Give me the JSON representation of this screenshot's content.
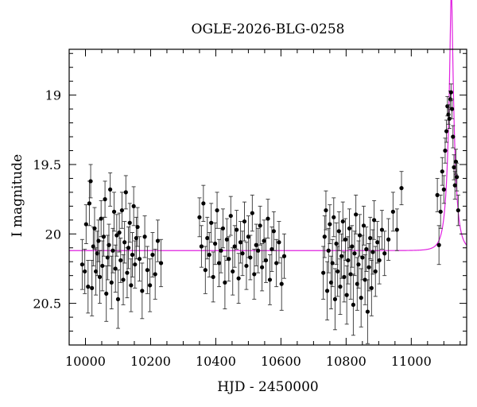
{
  "chart_data": {
    "type": "scatter",
    "title": "OGLE-2026-BLG-0258",
    "xlabel": "HJD - 2450000",
    "ylabel": "I magnitude",
    "xlim": [
      9950,
      11170
    ],
    "ylim": [
      20.8,
      18.67
    ],
    "y_inverted": true,
    "grid": false,
    "x_ticks": [
      10000,
      10200,
      10400,
      10600,
      10800,
      11000
    ],
    "y_ticks": [
      19,
      19.5,
      20,
      20.5
    ],
    "x_tick_labels": [
      "10000",
      "10200",
      "10400",
      "10600",
      "10800",
      "11000"
    ],
    "y_tick_labels": [
      "19",
      "19.5",
      "20",
      "20.5"
    ],
    "colors": {
      "points": "#000000",
      "model": "#e020e0",
      "axes": "#000000"
    },
    "series": [
      {
        "type": "errorbar_points",
        "points": [
          [
            9990,
            20.22,
            0.18
          ],
          [
            9998,
            20.27,
            0.16
          ],
          [
            10002,
            19.93,
            0.14
          ],
          [
            10008,
            20.38,
            0.19
          ],
          [
            10012,
            19.78,
            0.16
          ],
          [
            10016,
            19.62,
            0.12
          ],
          [
            10020,
            20.39,
            0.2
          ],
          [
            10024,
            20.09,
            0.14
          ],
          [
            10028,
            19.96,
            0.15
          ],
          [
            10032,
            20.27,
            0.17
          ],
          [
            10036,
            20.14,
            0.16
          ],
          [
            10040,
            20.05,
            0.15
          ],
          [
            10044,
            20.31,
            0.19
          ],
          [
            10048,
            19.89,
            0.13
          ],
          [
            10052,
            20.23,
            0.18
          ],
          [
            10056,
            20.02,
            0.14
          ],
          [
            10060,
            19.75,
            0.13
          ],
          [
            10064,
            20.43,
            0.2
          ],
          [
            10068,
            20.17,
            0.16
          ],
          [
            10072,
            20.08,
            0.15
          ],
          [
            10076,
            19.68,
            0.12
          ],
          [
            10080,
            20.35,
            0.19
          ],
          [
            10084,
            20.12,
            0.16
          ],
          [
            10088,
            19.84,
            0.14
          ],
          [
            10092,
            20.25,
            0.17
          ],
          [
            10096,
            20.01,
            0.15
          ],
          [
            10100,
            20.47,
            0.21
          ],
          [
            10104,
            19.99,
            0.14
          ],
          [
            10108,
            20.19,
            0.16
          ],
          [
            10112,
            19.83,
            0.13
          ],
          [
            10116,
            20.33,
            0.18
          ],
          [
            10120,
            20.06,
            0.15
          ],
          [
            10124,
            19.7,
            0.12
          ],
          [
            10128,
            20.28,
            0.18
          ],
          [
            10132,
            20.1,
            0.15
          ],
          [
            10136,
            19.92,
            0.14
          ],
          [
            10140,
            20.37,
            0.19
          ],
          [
            10144,
            20.15,
            0.16
          ],
          [
            10148,
            19.8,
            0.14
          ],
          [
            10152,
            20.22,
            0.17
          ],
          [
            10156,
            20.03,
            0.15
          ],
          [
            10160,
            19.95,
            0.14
          ],
          [
            10166,
            20.18,
            0.16
          ],
          [
            10174,
            20.41,
            0.2
          ],
          [
            10182,
            20.02,
            0.15
          ],
          [
            10190,
            20.26,
            0.17
          ],
          [
            10198,
            20.37,
            0.19
          ],
          [
            10206,
            20.15,
            0.16
          ],
          [
            10214,
            20.29,
            0.18
          ],
          [
            10222,
            20.05,
            0.15
          ],
          [
            10232,
            20.21,
            0.17
          ],
          [
            10350,
            19.88,
            0.14
          ],
          [
            10356,
            20.09,
            0.15
          ],
          [
            10362,
            19.78,
            0.13
          ],
          [
            10368,
            20.26,
            0.17
          ],
          [
            10374,
            20.03,
            0.15
          ],
          [
            10380,
            20.15,
            0.16
          ],
          [
            10386,
            19.92,
            0.14
          ],
          [
            10392,
            20.31,
            0.18
          ],
          [
            10398,
            20.07,
            0.15
          ],
          [
            10404,
            19.83,
            0.13
          ],
          [
            10410,
            20.21,
            0.17
          ],
          [
            10416,
            20.12,
            0.16
          ],
          [
            10422,
            19.96,
            0.14
          ],
          [
            10428,
            20.35,
            0.19
          ],
          [
            10434,
            20.04,
            0.15
          ],
          [
            10440,
            20.18,
            0.16
          ],
          [
            10446,
            19.87,
            0.14
          ],
          [
            10452,
            20.27,
            0.17
          ],
          [
            10458,
            20.09,
            0.15
          ],
          [
            10464,
            19.97,
            0.14
          ],
          [
            10470,
            20.32,
            0.18
          ],
          [
            10476,
            20.06,
            0.15
          ],
          [
            10482,
            20.14,
            0.16
          ],
          [
            10488,
            19.91,
            0.14
          ],
          [
            10494,
            20.23,
            0.17
          ],
          [
            10500,
            20.02,
            0.15
          ],
          [
            10506,
            20.17,
            0.16
          ],
          [
            10512,
            19.85,
            0.13
          ],
          [
            10518,
            20.29,
            0.18
          ],
          [
            10524,
            20.08,
            0.15
          ],
          [
            10530,
            20.12,
            0.16
          ],
          [
            10536,
            19.94,
            0.14
          ],
          [
            10542,
            20.24,
            0.17
          ],
          [
            10548,
            20.05,
            0.15
          ],
          [
            10554,
            20.19,
            0.16
          ],
          [
            10560,
            19.89,
            0.14
          ],
          [
            10566,
            20.33,
            0.18
          ],
          [
            10572,
            20.11,
            0.16
          ],
          [
            10578,
            19.98,
            0.14
          ],
          [
            10586,
            20.21,
            0.17
          ],
          [
            10594,
            20.06,
            0.15
          ],
          [
            10602,
            20.36,
            0.19
          ],
          [
            10610,
            20.16,
            0.16
          ],
          [
            10730,
            20.28,
            0.19
          ],
          [
            10734,
            20.02,
            0.15
          ],
          [
            10738,
            19.83,
            0.14
          ],
          [
            10742,
            20.41,
            0.21
          ],
          [
            10746,
            20.12,
            0.16
          ],
          [
            10750,
            19.93,
            0.14
          ],
          [
            10754,
            20.35,
            0.19
          ],
          [
            10758,
            20.21,
            0.17
          ],
          [
            10762,
            19.88,
            0.14
          ],
          [
            10766,
            20.47,
            0.22
          ],
          [
            10770,
            20.07,
            0.15
          ],
          [
            10774,
            20.27,
            0.18
          ],
          [
            10778,
            19.98,
            0.14
          ],
          [
            10782,
            20.38,
            0.2
          ],
          [
            10786,
            20.16,
            0.16
          ],
          [
            10790,
            19.91,
            0.14
          ],
          [
            10794,
            20.31,
            0.18
          ],
          [
            10798,
            20.04,
            0.15
          ],
          [
            10802,
            20.44,
            0.21
          ],
          [
            10806,
            20.19,
            0.17
          ],
          [
            10810,
            19.96,
            0.14
          ],
          [
            10814,
            20.29,
            0.18
          ],
          [
            10818,
            20.09,
            0.15
          ],
          [
            10822,
            20.51,
            0.22
          ],
          [
            10826,
            20.14,
            0.16
          ],
          [
            10830,
            19.86,
            0.14
          ],
          [
            10834,
            20.36,
            0.19
          ],
          [
            10838,
            20.22,
            0.17
          ],
          [
            10842,
            20.01,
            0.15
          ],
          [
            10846,
            20.46,
            0.21
          ],
          [
            10850,
            20.17,
            0.16
          ],
          [
            10854,
            19.94,
            0.14
          ],
          [
            10858,
            20.33,
            0.18
          ],
          [
            10862,
            20.11,
            0.16
          ],
          [
            10866,
            20.56,
            0.23
          ],
          [
            10870,
            20.24,
            0.17
          ],
          [
            10874,
            20.03,
            0.15
          ],
          [
            10878,
            20.39,
            0.2
          ],
          [
            10882,
            20.13,
            0.16
          ],
          [
            10886,
            19.9,
            0.14
          ],
          [
            10890,
            20.27,
            0.18
          ],
          [
            10896,
            20.06,
            0.15
          ],
          [
            10902,
            20.19,
            0.17
          ],
          [
            10910,
            19.97,
            0.14
          ],
          [
            10918,
            20.14,
            0.16
          ],
          [
            10930,
            20.04,
            0.15
          ],
          [
            10944,
            19.84,
            0.14
          ],
          [
            10956,
            19.97,
            0.15
          ],
          [
            10970,
            19.67,
            0.12
          ],
          [
            11080,
            19.72,
            0.12
          ],
          [
            11085,
            20.08,
            0.14
          ],
          [
            11090,
            19.84,
            0.12
          ],
          [
            11095,
            19.55,
            0.1
          ],
          [
            11100,
            19.68,
            0.1
          ],
          [
            11104,
            19.4,
            0.09
          ],
          [
            11108,
            19.26,
            0.08
          ],
          [
            11111,
            19.08,
            0.07
          ],
          [
            11114,
            19.14,
            0.07
          ],
          [
            11117,
            19.17,
            0.07
          ],
          [
            11120,
            19.03,
            0.06
          ],
          [
            11122,
            18.98,
            0.06
          ],
          [
            11125,
            19.1,
            0.07
          ],
          [
            11128,
            19.3,
            0.08
          ],
          [
            11131,
            19.52,
            0.09
          ],
          [
            11134,
            19.65,
            0.1
          ],
          [
            11137,
            19.48,
            0.09
          ],
          [
            11140,
            19.59,
            0.1
          ],
          [
            11144,
            19.83,
            0.11
          ]
        ]
      },
      {
        "type": "model_curve",
        "baseline": 20.12,
        "t0": 11123,
        "tE": 20,
        "u0": 0.18
      }
    ]
  }
}
